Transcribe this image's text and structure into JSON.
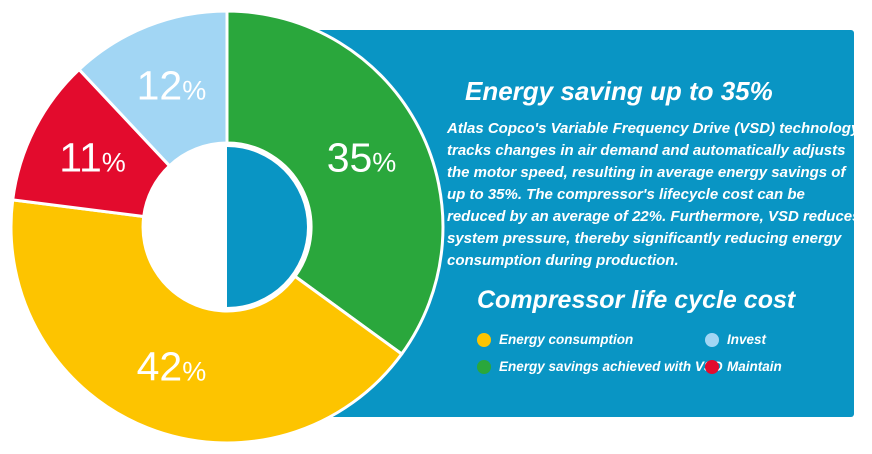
{
  "panel": {
    "title": "Energy saving up to 35%",
    "body": "Atlas Copco's Variable Frequency Drive (VSD) technology tracks changes in air demand and automatically adjusts the motor speed, resulting in average energy savings of up to 35%. The compressor's lifecycle cost can be reduced by an average of 22%. Furthermore, VSD reduces system pressure, thereby significantly reducing energy consumption during production.",
    "section_title": "Compressor life cycle cost",
    "background": "#0995c4"
  },
  "chart_data": {
    "type": "pie",
    "variant": "donut",
    "title": "Compressor life cycle cost",
    "start_angle_deg": 0,
    "direction": "clockwise",
    "donut_hole_ratio": 0.39,
    "segments": [
      {
        "label": "Energy savings achieved with VSD",
        "value": 35,
        "unit": "%",
        "color": "#2aa73c"
      },
      {
        "label": "Energy consumption",
        "value": 42,
        "unit": "%",
        "color": "#fdc400"
      },
      {
        "label": "Maintain",
        "value": 11,
        "unit": "%",
        "color": "#e30b2d"
      },
      {
        "label": "Invest",
        "value": 12,
        "unit": "%",
        "color": "#a2d6f4"
      }
    ],
    "segment_labels": [
      "35%",
      "42%",
      "11%",
      "12%"
    ],
    "label_color": "#ffffff",
    "center_fill_left": "#ffffff",
    "center_fill_right": "#0995c4",
    "legend_position": "bottom of blue panel, two columns"
  },
  "legend": {
    "items": [
      {
        "label": "Energy consumption",
        "color": "#fdc400"
      },
      {
        "label": "Invest",
        "color": "#a2d6f4"
      },
      {
        "label": "Energy savings achieved with VSD",
        "color": "#2aa73c"
      },
      {
        "label": "Maintain",
        "color": "#e30b2d"
      }
    ]
  }
}
